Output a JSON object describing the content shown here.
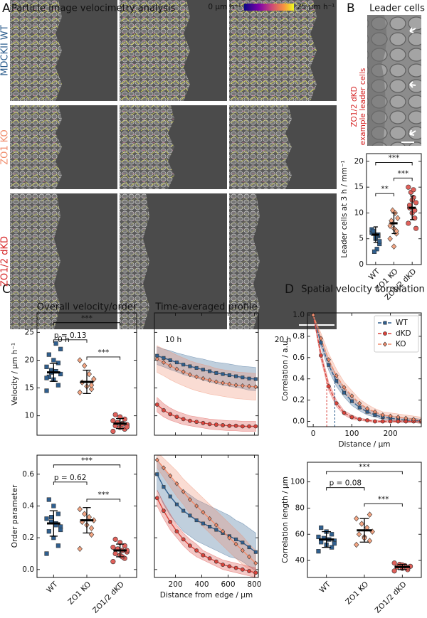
{
  "figure": {
    "panel_labels": [
      "A",
      "B",
      "C",
      "D"
    ],
    "panel_a": {
      "title": "Particle image velocimetry analysis",
      "colorbar_min": "0 μm h⁻¹",
      "colorbar_max": "25 μm h⁻¹",
      "rows": [
        "MDCKII WT",
        "ZO1 KO",
        "ZO1/2 dKD"
      ],
      "row_colors": [
        "#2f5f8f",
        "#f08c6c",
        "#d62728"
      ],
      "columns": [
        "0 h",
        "10 h",
        "20 h"
      ]
    },
    "panel_b": {
      "title": "Leader cells",
      "image_label": [
        "ZO1/2 dKD",
        "example leader cells"
      ],
      "image_label_color": "#d62728"
    }
  },
  "chart_data": [
    {
      "type": "strip",
      "ylabel": "Leader cells at 3 h / mm⁻¹",
      "categories": [
        "WT",
        "ZO1 KO",
        "ZO1/2 dKD"
      ],
      "colors": [
        "#2f5f8f",
        "#f4a582",
        "#e0605a"
      ],
      "markers": [
        "square",
        "diamond",
        "circle"
      ],
      "points": [
        [
          6.2,
          5.5,
          5.0,
          6.0,
          4.0,
          3.0,
          2.5,
          6.8,
          5.8,
          5.2,
          6.5,
          4.5
        ],
        [
          5.0,
          6.0,
          7.0,
          8.0,
          9.0,
          10.0,
          10.5,
          7.5,
          6.5,
          3.5,
          8.5
        ],
        [
          8.0,
          9.0,
          10.0,
          11.0,
          12.0,
          13.0,
          14.0,
          15.0,
          10.5,
          12.5,
          11.5,
          7.0,
          14.5
        ]
      ],
      "means": [
        5.8,
        8.0,
        11.0
      ],
      "sds": [
        1.5,
        2.0,
        2.3
      ],
      "ylim": [
        0,
        21.5
      ],
      "yticks": [
        0,
        5,
        10,
        15,
        20
      ],
      "brackets": [
        {
          "between": [
            "WT",
            "ZO1/2 dKD"
          ],
          "label": "***"
        },
        {
          "between": [
            "ZO1 KO",
            "ZO1/2 dKD"
          ],
          "label": "***"
        },
        {
          "between": [
            "WT",
            "ZO1 KO"
          ],
          "label": "**"
        }
      ]
    },
    {
      "type": "strip",
      "title": "Overall velocity/order",
      "ylabel": "Velocity / μm h⁻¹",
      "categories": [
        "WT",
        "ZO1 KO",
        "ZO1/2 dKD"
      ],
      "colors": [
        "#2f5f8f",
        "#f4a582",
        "#e0605a"
      ],
      "markers": [
        "square",
        "diamond",
        "circle"
      ],
      "points": [
        [
          14.5,
          15.5,
          16.5,
          17.0,
          17.5,
          18.0,
          18.2,
          18.8,
          19.5,
          20.0,
          21.0,
          22.0,
          23.0,
          17.8,
          16.8
        ],
        [
          14.2,
          14.8,
          15.3,
          16.0,
          16.6,
          17.5,
          19.0,
          20.0,
          15.5
        ],
        [
          7.2,
          7.6,
          7.9,
          8.2,
          8.4,
          8.6,
          8.8,
          9.1,
          9.4,
          9.8,
          10.2,
          8.0,
          8.5
        ]
      ],
      "means": [
        17.8,
        16.1,
        8.6
      ],
      "sds": [
        1.6,
        2.1,
        0.9
      ],
      "ylim": [
        6.5,
        28.5
      ],
      "yticks": [
        10,
        15,
        20,
        25
      ],
      "show_xtick_labels": false,
      "brackets": [
        {
          "between": [
            "WT",
            "ZO1/2 dKD"
          ],
          "label": "***"
        },
        {
          "between": [
            "WT",
            "ZO1 KO"
          ],
          "label": "p = 0.13"
        },
        {
          "between": [
            "ZO1 KO",
            "ZO1/2 dKD"
          ],
          "label": "***"
        }
      ]
    },
    {
      "type": "line",
      "title": "Time-averaged profile",
      "x": [
        60,
        110,
        160,
        210,
        260,
        310,
        360,
        410,
        460,
        510,
        560,
        610,
        660,
        710,
        760,
        810
      ],
      "series": [
        {
          "name": "WT",
          "color": "#2f5f8f",
          "marker": "square",
          "values": [
            20.8,
            20.4,
            20.0,
            19.6,
            19.2,
            18.9,
            18.6,
            18.3,
            18.0,
            17.7,
            17.5,
            17.3,
            17.1,
            16.9,
            16.7,
            16.6
          ],
          "errors": [
            1.6,
            1.6,
            1.7,
            1.7,
            1.8,
            1.8,
            1.8,
            1.9,
            1.9,
            1.9,
            2.0,
            2.0,
            2.0,
            2.0,
            2.1,
            2.1
          ]
        },
        {
          "name": "KO",
          "color": "#f08c6c",
          "marker": "diamond",
          "values": [
            20.2,
            19.6,
            19.0,
            18.4,
            17.9,
            17.4,
            17.0,
            16.7,
            16.4,
            16.1,
            15.9,
            15.7,
            15.5,
            15.4,
            15.3,
            15.2
          ],
          "errors": [
            2.4,
            2.4,
            2.5,
            2.5,
            2.5,
            2.5,
            2.5,
            2.5,
            2.5,
            2.4,
            2.4,
            2.4,
            2.4,
            2.4,
            2.4,
            2.4
          ]
        },
        {
          "name": "dKD",
          "color": "#d9433b",
          "marker": "circle",
          "values": [
            12.0,
            11.0,
            10.3,
            9.8,
            9.4,
            9.1,
            8.9,
            8.7,
            8.5,
            8.4,
            8.3,
            8.2,
            8.2,
            8.1,
            8.1,
            8.1
          ],
          "errors": [
            1.3,
            1.2,
            1.1,
            1.0,
            1.0,
            0.9,
            0.9,
            0.9,
            0.9,
            0.9,
            0.9,
            0.9,
            0.9,
            0.9,
            0.9,
            0.9
          ]
        }
      ],
      "xlim": [
        40,
        830
      ],
      "xticks": [
        200,
        400,
        600,
        800
      ],
      "ylim": [
        6.5,
        28.5
      ],
      "yticks": [
        10,
        15,
        20,
        25
      ],
      "show_xtick_labels": false,
      "show_ytick_labels": false
    },
    {
      "type": "strip",
      "ylabel": "Order parameter",
      "categories": [
        "WT",
        "ZO1 KO",
        "ZO1/2 dKD"
      ],
      "colors": [
        "#2f5f8f",
        "#f4a582",
        "#e0605a"
      ],
      "markers": [
        "square",
        "diamond",
        "circle"
      ],
      "points": [
        [
          0.1,
          0.15,
          0.2,
          0.24,
          0.27,
          0.29,
          0.3,
          0.32,
          0.35,
          0.4,
          0.44,
          0.25,
          0.28,
          0.33
        ],
        [
          0.13,
          0.22,
          0.28,
          0.3,
          0.31,
          0.33,
          0.35,
          0.38,
          0.26
        ],
        [
          0.05,
          0.07,
          0.09,
          0.1,
          0.11,
          0.12,
          0.13,
          0.14,
          0.15,
          0.17,
          0.19,
          0.12,
          0.08
        ]
      ],
      "means": [
        0.29,
        0.31,
        0.12
      ],
      "sds": [
        0.08,
        0.08,
        0.04
      ],
      "ylim": [
        -0.05,
        0.72
      ],
      "yticks": [
        {
          "value": 0,
          "label": "0.0"
        },
        0.2,
        0.4,
        0.6
      ],
      "brackets": [
        {
          "between": [
            "WT",
            "ZO1/2 dKD"
          ],
          "label": "***"
        },
        {
          "between": [
            "WT",
            "ZO1 KO"
          ],
          "label": "p = 0.62"
        },
        {
          "between": [
            "ZO1 KO",
            "ZO1/2 dKD"
          ],
          "label": "***"
        }
      ]
    },
    {
      "type": "line",
      "xlabel": "Distance from edge / μm",
      "x": [
        60,
        110,
        160,
        210,
        260,
        310,
        360,
        410,
        460,
        510,
        560,
        610,
        660,
        710,
        760,
        810
      ],
      "series": [
        {
          "name": "WT",
          "color": "#2f5f8f",
          "marker": "square",
          "values": [
            0.6,
            0.52,
            0.46,
            0.41,
            0.37,
            0.34,
            0.31,
            0.29,
            0.27,
            0.25,
            0.23,
            0.21,
            0.19,
            0.17,
            0.14,
            0.11
          ],
          "errors": [
            0.1,
            0.11,
            0.12,
            0.12,
            0.13,
            0.13,
            0.13,
            0.13,
            0.13,
            0.13,
            0.13,
            0.13,
            0.12,
            0.12,
            0.12,
            0.12
          ]
        },
        {
          "name": "KO",
          "color": "#f08c6c",
          "marker": "diamond",
          "values": [
            0.69,
            0.64,
            0.59,
            0.54,
            0.49,
            0.44,
            0.4,
            0.36,
            0.32,
            0.28,
            0.24,
            0.2,
            0.16,
            0.12,
            0.08,
            0.04
          ],
          "errors": [
            0.05,
            0.06,
            0.07,
            0.08,
            0.08,
            0.09,
            0.09,
            0.09,
            0.09,
            0.09,
            0.09,
            0.09,
            0.09,
            0.09,
            0.08,
            0.08
          ]
        },
        {
          "name": "dKD",
          "color": "#d9433b",
          "marker": "circle",
          "values": [
            0.45,
            0.37,
            0.3,
            0.24,
            0.19,
            0.15,
            0.12,
            0.09,
            0.07,
            0.05,
            0.03,
            0.02,
            0.01,
            0.0,
            -0.01,
            -0.02
          ],
          "errors": [
            0.05,
            0.05,
            0.05,
            0.04,
            0.04,
            0.04,
            0.04,
            0.03,
            0.03,
            0.03,
            0.03,
            0.03,
            0.03,
            0.03,
            0.03,
            0.03
          ]
        }
      ],
      "xlim": [
        40,
        830
      ],
      "xticks": [
        200,
        400,
        600,
        800
      ],
      "ylim": [
        -0.05,
        0.72
      ],
      "yticks": [
        {
          "value": 0,
          "label": "0.0"
        },
        0.2,
        0.4,
        0.6
      ],
      "show_ytick_labels": false
    },
    {
      "type": "line",
      "title": "Spatial velocity correlation",
      "xlabel": "Distance / μm",
      "ylabel": "Correlation / a.u.",
      "x": [
        0,
        20,
        40,
        60,
        80,
        100,
        120,
        140,
        160,
        180,
        200,
        220,
        240,
        260,
        280
      ],
      "series": [
        {
          "name": "WT",
          "color": "#2f5f8f",
          "marker": "square",
          "values": [
            1.0,
            0.74,
            0.53,
            0.38,
            0.27,
            0.19,
            0.13,
            0.09,
            0.06,
            0.04,
            0.03,
            0.02,
            0.01,
            0.01,
            0.0
          ],
          "errors": [
            0.0,
            0.04,
            0.05,
            0.05,
            0.04,
            0.04,
            0.03,
            0.03,
            0.02,
            0.02,
            0.02,
            0.02,
            0.02,
            0.02,
            0.02
          ]
        },
        {
          "name": "dKD",
          "color": "#d9433b",
          "marker": "circle",
          "values": [
            1.0,
            0.62,
            0.33,
            0.17,
            0.08,
            0.04,
            0.02,
            0.01,
            0.0,
            0.0,
            0.0,
            0.0,
            0.0,
            0.0,
            0.0
          ],
          "errors": [
            0.0,
            0.04,
            0.04,
            0.03,
            0.02,
            0.02,
            0.01,
            0.01,
            0.01,
            0.01,
            0.01,
            0.01,
            0.01,
            0.01,
            0.01
          ]
        },
        {
          "name": "KO",
          "color": "#f08c6c",
          "marker": "diamond",
          "values": [
            1.0,
            0.78,
            0.58,
            0.43,
            0.32,
            0.24,
            0.17,
            0.12,
            0.09,
            0.06,
            0.05,
            0.04,
            0.03,
            0.02,
            0.01
          ],
          "errors": [
            0.0,
            0.05,
            0.06,
            0.06,
            0.05,
            0.05,
            0.04,
            0.04,
            0.03,
            0.03,
            0.03,
            0.03,
            0.03,
            0.03,
            0.03
          ]
        }
      ],
      "xlim": [
        -15,
        280
      ],
      "xticks": [
        0,
        100,
        200
      ],
      "ylim": [
        -0.05,
        1.02
      ],
      "yticks": [
        {
          "value": 0,
          "label": "0.0"
        },
        0.2,
        0.4,
        0.6,
        0.8,
        {
          "value": 1,
          "label": "1.0"
        }
      ],
      "linestyle": "dashed",
      "legend": "upper right"
    },
    {
      "type": "strip",
      "ylabel": "Correlation length / μm",
      "categories": [
        "WT",
        "ZO1 KO",
        "ZO1/2 dKD"
      ],
      "colors": [
        "#2f5f8f",
        "#f4a582",
        "#e0605a"
      ],
      "markers": [
        "square",
        "diamond",
        "circle"
      ],
      "points": [
        [
          47,
          50,
          52,
          54,
          55,
          56,
          57,
          58,
          60,
          62,
          65,
          53
        ],
        [
          52,
          55,
          58,
          60,
          62,
          65,
          68,
          72,
          75,
          57
        ],
        [
          32,
          33,
          34,
          35,
          35.5,
          36,
          37,
          38,
          34.5,
          36.5
        ]
      ],
      "means": [
        56,
        63,
        35
      ],
      "sds": [
        6,
        9,
        2
      ],
      "ylim": [
        27,
        115
      ],
      "yticks": [
        40,
        60,
        80,
        100
      ],
      "brackets": [
        {
          "between": [
            "WT",
            "ZO1/2 dKD"
          ],
          "label": "***"
        },
        {
          "between": [
            "WT",
            "ZO1 KO"
          ],
          "label": "p = 0.08"
        },
        {
          "between": [
            "ZO1 KO",
            "ZO1/2 dKD"
          ],
          "label": "***"
        }
      ]
    }
  ]
}
